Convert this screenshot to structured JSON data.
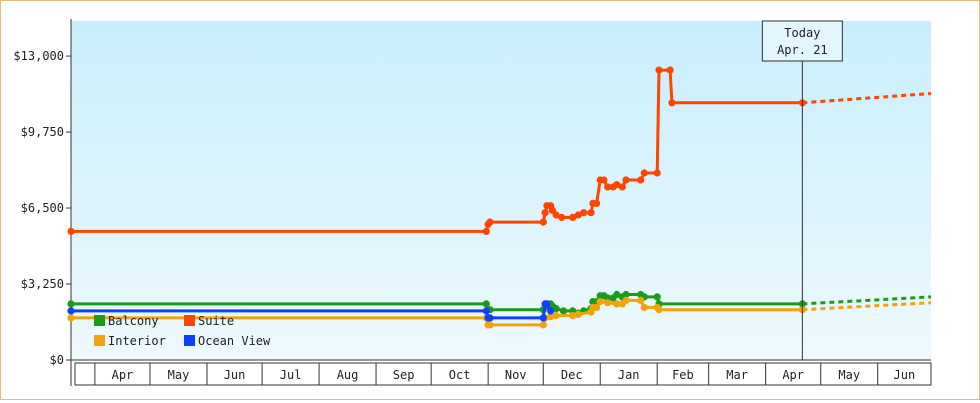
{
  "chart_data": {
    "type": "line",
    "title": "",
    "xlabel": "",
    "ylabel": "",
    "ylim": [
      0,
      14500
    ],
    "y_ticks": [
      {
        "value": 0,
        "label": "$0"
      },
      {
        "value": 3250,
        "label": "$3,250"
      },
      {
        "value": 6500,
        "label": "$6,500"
      },
      {
        "value": 9750,
        "label": "$9,750"
      },
      {
        "value": 13000,
        "label": "$13,000"
      }
    ],
    "x_range": [
      "2016-03-19",
      "2017-06-30"
    ],
    "x_ticks": [
      {
        "label": "Apr",
        "start": "2016-04-01",
        "end": "2016-05-01"
      },
      {
        "label": "May",
        "start": "2016-05-01",
        "end": "2016-06-01"
      },
      {
        "label": "Jun",
        "start": "2016-06-01",
        "end": "2016-07-01"
      },
      {
        "label": "Jul",
        "start": "2016-07-01",
        "end": "2016-08-01"
      },
      {
        "label": "Aug",
        "start": "2016-08-01",
        "end": "2016-09-01"
      },
      {
        "label": "Sep",
        "start": "2016-09-01",
        "end": "2016-10-01"
      },
      {
        "label": "Oct",
        "start": "2016-10-01",
        "end": "2016-11-01"
      },
      {
        "label": "Nov",
        "start": "2016-11-01",
        "end": "2016-12-01"
      },
      {
        "label": "Dec",
        "start": "2016-12-01",
        "end": "2017-01-01"
      },
      {
        "label": "Jan",
        "start": "2017-01-01",
        "end": "2017-02-01"
      },
      {
        "label": "Feb",
        "start": "2017-02-01",
        "end": "2017-03-01"
      },
      {
        "label": "Mar",
        "start": "2017-03-01",
        "end": "2017-04-01"
      },
      {
        "label": "Apr",
        "start": "2017-04-01",
        "end": "2017-05-01"
      },
      {
        "label": "May",
        "start": "2017-05-01",
        "end": "2017-06-01"
      },
      {
        "label": "Jun",
        "start": "2017-06-01",
        "end": "2017-07-01"
      }
    ],
    "today": {
      "date": "2017-04-21",
      "label_line1": "Today",
      "label_line2": "Apr. 21"
    },
    "legend_placement": "bottom-left",
    "grid": false,
    "series": [
      {
        "name": "Suite",
        "color": "#ff4500",
        "points": [
          [
            "2016-03-19",
            5500
          ],
          [
            "2016-10-31",
            5500
          ],
          [
            "2016-11-01",
            5800
          ],
          [
            "2016-11-02",
            5900
          ],
          [
            "2016-12-01",
            5900
          ],
          [
            "2016-12-02",
            6300
          ],
          [
            "2016-12-03",
            6600
          ],
          [
            "2016-12-05",
            6600
          ],
          [
            "2016-12-06",
            6400
          ],
          [
            "2016-12-08",
            6200
          ],
          [
            "2016-12-11",
            6100
          ],
          [
            "2016-12-17",
            6100
          ],
          [
            "2016-12-20",
            6200
          ],
          [
            "2016-12-23",
            6300
          ],
          [
            "2016-12-27",
            6300
          ],
          [
            "2016-12-28",
            6700
          ],
          [
            "2016-12-30",
            6700
          ],
          [
            "2017-01-01",
            7700
          ],
          [
            "2017-01-03",
            7700
          ],
          [
            "2017-01-05",
            7400
          ],
          [
            "2017-01-08",
            7400
          ],
          [
            "2017-01-10",
            7500
          ],
          [
            "2017-01-13",
            7400
          ],
          [
            "2017-01-15",
            7700
          ],
          [
            "2017-01-23",
            7700
          ],
          [
            "2017-01-25",
            8000
          ],
          [
            "2017-02-01",
            8000
          ],
          [
            "2017-02-02",
            12400
          ],
          [
            "2017-02-08",
            12400
          ],
          [
            "2017-02-09",
            11000
          ],
          [
            "2017-04-21",
            11000
          ]
        ],
        "forecast": [
          [
            "2017-04-21",
            11000
          ],
          [
            "2017-06-30",
            11400
          ]
        ]
      },
      {
        "name": "Balcony",
        "color": "#1a9c1a",
        "points": [
          [
            "2016-03-19",
            2400
          ],
          [
            "2016-10-31",
            2400
          ],
          [
            "2016-11-01",
            2150
          ],
          [
            "2016-11-02",
            2150
          ],
          [
            "2016-12-01",
            2150
          ],
          [
            "2016-12-03",
            2300
          ],
          [
            "2016-12-05",
            2400
          ],
          [
            "2016-12-06",
            2300
          ],
          [
            "2016-12-08",
            2200
          ],
          [
            "2016-12-12",
            2100
          ],
          [
            "2016-12-17",
            2100
          ],
          [
            "2016-12-20",
            2000
          ],
          [
            "2016-12-23",
            2100
          ],
          [
            "2016-12-27",
            2200
          ],
          [
            "2016-12-28",
            2500
          ],
          [
            "2016-12-30",
            2500
          ],
          [
            "2017-01-01",
            2750
          ],
          [
            "2017-01-03",
            2750
          ],
          [
            "2017-01-05",
            2650
          ],
          [
            "2017-01-08",
            2650
          ],
          [
            "2017-01-10",
            2800
          ],
          [
            "2017-01-13",
            2700
          ],
          [
            "2017-01-15",
            2800
          ],
          [
            "2017-01-23",
            2800
          ],
          [
            "2017-01-25",
            2700
          ],
          [
            "2017-02-01",
            2700
          ],
          [
            "2017-02-02",
            2400
          ],
          [
            "2017-04-21",
            2400
          ]
        ],
        "forecast": [
          [
            "2017-04-21",
            2400
          ],
          [
            "2017-06-30",
            2700
          ]
        ]
      },
      {
        "name": "Interior",
        "color": "#f0a30a",
        "points": [
          [
            "2016-03-19",
            1800
          ],
          [
            "2016-10-31",
            1800
          ],
          [
            "2016-11-01",
            1500
          ],
          [
            "2016-11-02",
            1500
          ],
          [
            "2016-12-01",
            1500
          ],
          [
            "2016-12-02",
            1800
          ],
          [
            "2016-12-05",
            1850
          ],
          [
            "2016-12-08",
            1900
          ],
          [
            "2016-12-17",
            1900
          ],
          [
            "2016-12-20",
            1950
          ],
          [
            "2016-12-27",
            2050
          ],
          [
            "2016-12-28",
            2250
          ],
          [
            "2016-12-30",
            2250
          ],
          [
            "2017-01-01",
            2500
          ],
          [
            "2017-01-05",
            2450
          ],
          [
            "2017-01-10",
            2400
          ],
          [
            "2017-01-13",
            2400
          ],
          [
            "2017-01-15",
            2550
          ],
          [
            "2017-01-23",
            2550
          ],
          [
            "2017-01-25",
            2250
          ],
          [
            "2017-02-01",
            2250
          ],
          [
            "2017-02-02",
            2150
          ],
          [
            "2017-04-21",
            2150
          ]
        ],
        "forecast": [
          [
            "2017-04-21",
            2150
          ],
          [
            "2017-06-30",
            2450
          ]
        ]
      },
      {
        "name": "Ocean View",
        "color": "#1040ff",
        "points": [
          [
            "2016-03-19",
            2100
          ],
          [
            "2016-10-31",
            2100
          ],
          [
            "2016-11-01",
            1800
          ],
          [
            "2016-11-02",
            1800
          ],
          [
            "2016-12-01",
            1800
          ],
          [
            "2016-12-02",
            2400
          ],
          [
            "2016-12-03",
            2400
          ],
          [
            "2016-12-05",
            2100
          ]
        ]
      }
    ]
  }
}
